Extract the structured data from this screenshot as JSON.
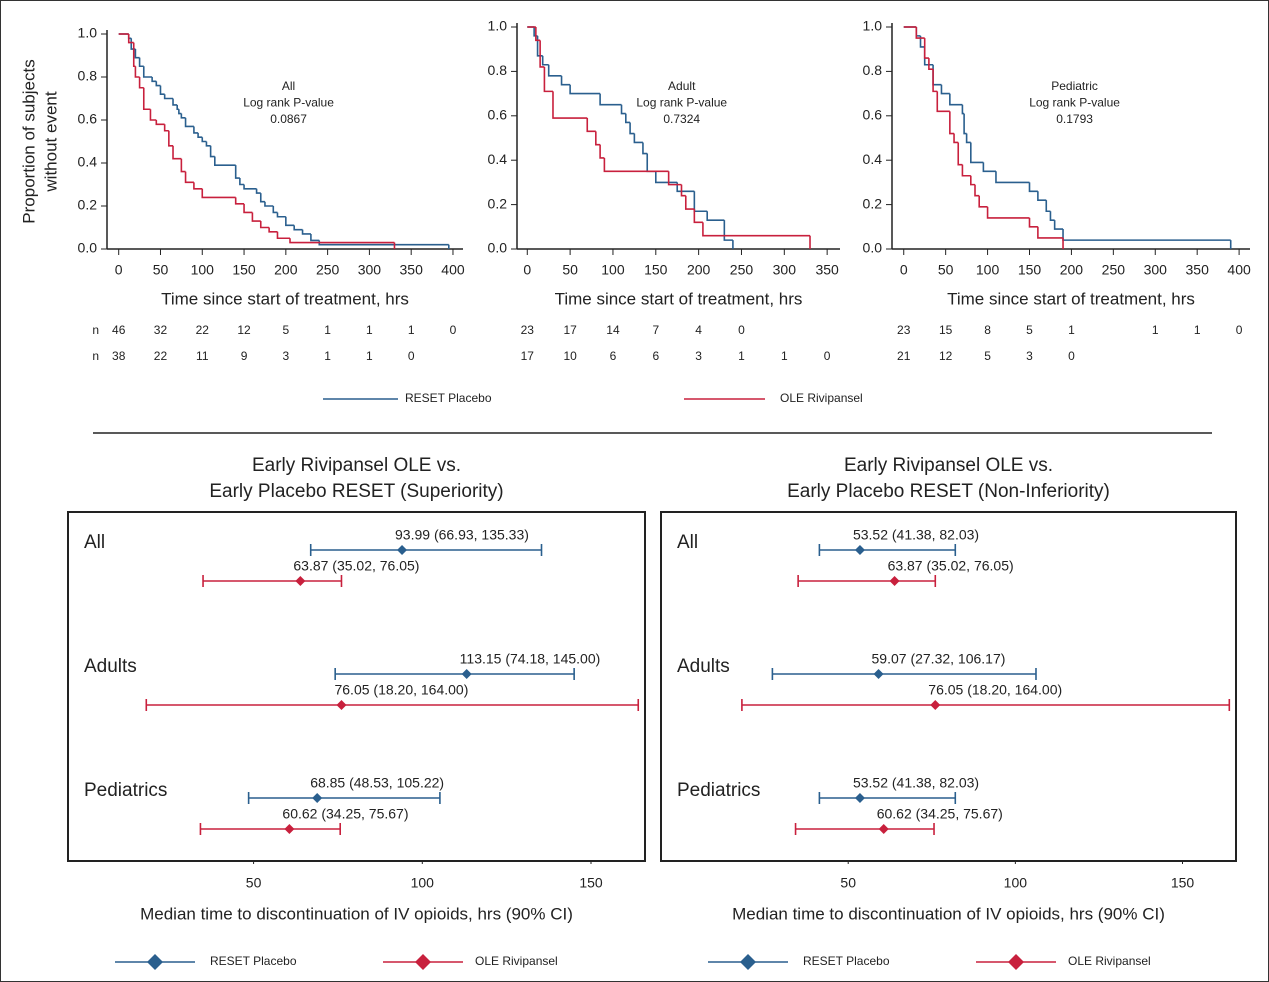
{
  "chart_data": [
    {
      "type": "step",
      "annotation": [
        "All",
        "Log rank P-value",
        "0.0867"
      ],
      "ylabel": [
        "Proportion of subjects",
        "without event"
      ],
      "xlabel": "Time since start of treatment, hrs",
      "xlim": [
        -14,
        412
      ],
      "ylim": [
        0,
        1
      ],
      "xticks": [
        0,
        50,
        100,
        150,
        200,
        250,
        300,
        350,
        400
      ],
      "yticks": [
        {
          "value": 0,
          "label": "0.0"
        },
        {
          "value": 0.2,
          "label": "0.2"
        },
        {
          "value": 0.4,
          "label": "0.4"
        },
        {
          "value": 0.6,
          "label": "0.6"
        },
        {
          "value": 0.8,
          "label": "0.8"
        },
        {
          "value": 1,
          "label": "1.0"
        }
      ],
      "series": [
        {
          "name": "RESET Placebo",
          "color": "#2a5f8e",
          "x": [
            0,
            12,
            15,
            20,
            25,
            30,
            40,
            45,
            50,
            55,
            65,
            70,
            72,
            75,
            80,
            90,
            95,
            100,
            105,
            110,
            115,
            140,
            145,
            150,
            165,
            170,
            175,
            185,
            190,
            200,
            210,
            220,
            230,
            240,
            395
          ],
          "values": [
            1,
            0.98,
            0.93,
            0.89,
            0.85,
            0.8,
            0.78,
            0.76,
            0.72,
            0.7,
            0.67,
            0.65,
            0.63,
            0.61,
            0.57,
            0.54,
            0.52,
            0.5,
            0.48,
            0.43,
            0.39,
            0.33,
            0.3,
            0.28,
            0.26,
            0.22,
            0.2,
            0.17,
            0.15,
            0.11,
            0.09,
            0.07,
            0.04,
            0.02,
            0
          ]
        },
        {
          "name": "OLE Rivipansel",
          "color": "#c8203d",
          "x": [
            0,
            12,
            18,
            20,
            25,
            30,
            38,
            45,
            55,
            60,
            65,
            75,
            80,
            90,
            100,
            140,
            150,
            160,
            170,
            180,
            190,
            205,
            330
          ],
          "values": [
            1,
            0.96,
            0.85,
            0.8,
            0.75,
            0.65,
            0.6,
            0.58,
            0.55,
            0.48,
            0.42,
            0.36,
            0.31,
            0.28,
            0.24,
            0.21,
            0.17,
            0.13,
            0.1,
            0.08,
            0.05,
            0.03,
            0
          ]
        }
      ],
      "at_risk": [
        {
          "label": "n",
          "values": [
            46,
            32,
            22,
            12,
            5,
            1,
            1,
            1,
            0
          ]
        },
        {
          "label": "n",
          "values": [
            38,
            22,
            11,
            9,
            3,
            1,
            1,
            0
          ]
        }
      ]
    },
    {
      "type": "step",
      "annotation": [
        "Adult",
        "Log rank P-value",
        "0.7324"
      ],
      "xlim": [
        -12,
        365
      ],
      "ylim": [
        0,
        1
      ],
      "xticks": [
        0,
        50,
        100,
        150,
        200,
        250,
        300,
        350
      ],
      "yticks": [
        {
          "value": 0,
          "label": "0.0"
        },
        {
          "value": 0.2,
          "label": "0.2"
        },
        {
          "value": 0.4,
          "label": "0.4"
        },
        {
          "value": 0.6,
          "label": "0.6"
        },
        {
          "value": 0.8,
          "label": "0.8"
        },
        {
          "value": 1,
          "label": "1.0"
        }
      ],
      "xlabel": "Time since start of treatment, hrs",
      "series": [
        {
          "color": "#2a5f8e",
          "x": [
            0,
            8,
            12,
            18,
            25,
            40,
            50,
            85,
            110,
            115,
            120,
            125,
            135,
            140,
            150,
            175,
            195,
            210,
            230,
            240
          ],
          "values": [
            1,
            0.96,
            0.87,
            0.83,
            0.78,
            0.74,
            0.7,
            0.65,
            0.61,
            0.57,
            0.52,
            0.48,
            0.43,
            0.35,
            0.3,
            0.26,
            0.17,
            0.13,
            0.04,
            0
          ]
        },
        {
          "color": "#c8203d",
          "x": [
            0,
            10,
            15,
            20,
            30,
            70,
            80,
            85,
            90,
            165,
            180,
            185,
            195,
            205,
            330
          ],
          "values": [
            1,
            0.94,
            0.82,
            0.71,
            0.59,
            0.53,
            0.47,
            0.41,
            0.35,
            0.29,
            0.24,
            0.18,
            0.12,
            0.06,
            0
          ]
        }
      ],
      "at_risk": [
        {
          "values": [
            23,
            17,
            14,
            7,
            4,
            0
          ]
        },
        {
          "values": [
            17,
            10,
            6,
            6,
            3,
            1,
            1,
            0
          ]
        }
      ]
    },
    {
      "type": "step",
      "annotation": [
        "Pediatric",
        "Log rank P-value",
        "0.1793"
      ],
      "xlim": [
        -14,
        413
      ],
      "ylim": [
        0,
        1
      ],
      "xticks": [
        0,
        50,
        100,
        150,
        200,
        250,
        300,
        350,
        400
      ],
      "yticks": [
        {
          "value": 0,
          "label": "0.0"
        },
        {
          "value": 0.2,
          "label": "0.2"
        },
        {
          "value": 0.4,
          "label": "0.4"
        },
        {
          "value": 0.6,
          "label": "0.6"
        },
        {
          "value": 0.8,
          "label": "0.8"
        },
        {
          "value": 1,
          "label": "1.0"
        }
      ],
      "xlabel": "Time since start of treatment, hrs",
      "series": [
        {
          "color": "#2a5f8e",
          "x": [
            0,
            15,
            20,
            25,
            35,
            45,
            55,
            70,
            72,
            75,
            80,
            95,
            110,
            150,
            160,
            170,
            175,
            180,
            190,
            390
          ],
          "values": [
            1,
            0.96,
            0.91,
            0.83,
            0.74,
            0.7,
            0.65,
            0.61,
            0.52,
            0.48,
            0.39,
            0.35,
            0.3,
            0.26,
            0.22,
            0.17,
            0.13,
            0.09,
            0.04,
            0
          ]
        },
        {
          "color": "#c8203d",
          "x": [
            0,
            15,
            25,
            30,
            35,
            40,
            55,
            60,
            65,
            70,
            80,
            85,
            90,
            100,
            150,
            160,
            190
          ],
          "values": [
            1,
            0.95,
            0.86,
            0.81,
            0.71,
            0.62,
            0.52,
            0.48,
            0.38,
            0.33,
            0.29,
            0.24,
            0.19,
            0.14,
            0.1,
            0.05,
            0
          ]
        }
      ],
      "at_risk": [
        {
          "values": [
            23,
            15,
            8,
            5,
            1,
            null,
            1,
            1,
            0
          ]
        },
        {
          "values": [
            21,
            12,
            5,
            3,
            0
          ]
        }
      ]
    },
    {
      "type": "forest",
      "title": [
        "Early Rivipansel OLE vs.",
        "Early Placebo RESET (Superiority)"
      ],
      "xlabel": "Median time to discontinuation of IV opioids, hrs (90% CI)",
      "xlim": [
        -5,
        166
      ],
      "xticks": [
        50,
        100,
        150
      ],
      "categories": [
        "All",
        "Adults",
        "Pediatrics"
      ],
      "series": [
        {
          "name": "RESET Placebo",
          "color": "#2a5f8e",
          "values": [
            93.99,
            113.15,
            68.85
          ],
          "lower": [
            66.93,
            74.18,
            48.53
          ],
          "upper": [
            135.33,
            145.0,
            105.22
          ],
          "value_labels": [
            "93.99 (66.93, 135.33)",
            "113.15 (74.18, 145.00)",
            "68.85 (48.53, 105.22)"
          ]
        },
        {
          "name": "OLE Rivipansel",
          "color": "#c8203d",
          "values": [
            63.87,
            76.05,
            60.62
          ],
          "lower": [
            35.02,
            18.2,
            34.25
          ],
          "upper": [
            76.05,
            164.0,
            75.67
          ],
          "value_labels": [
            "63.87 (35.02, 76.05)",
            "76.05 (18.20, 164.00)",
            "60.62 (34.25, 75.67)"
          ]
        }
      ]
    },
    {
      "type": "forest",
      "title": [
        "Early Rivipansel OLE vs.",
        "Early Placebo RESET (Non-Inferiority)"
      ],
      "xlabel": "Median time to discontinuation of IV opioids, hrs (90% CI)",
      "xlim": [
        -6,
        166
      ],
      "xticks": [
        50,
        100,
        150
      ],
      "categories": [
        "All",
        "Adults",
        "Pediatrics"
      ],
      "series": [
        {
          "name": "RESET Placebo",
          "color": "#2a5f8e",
          "values": [
            53.52,
            59.07,
            53.52
          ],
          "lower": [
            41.38,
            27.32,
            41.38
          ],
          "upper": [
            82.03,
            106.17,
            82.03
          ],
          "value_labels": [
            "53.52 (41.38, 82.03)",
            "59.07 (27.32, 106.17)",
            "53.52 (41.38, 82.03)"
          ]
        },
        {
          "name": "OLE Rivipansel",
          "color": "#c8203d",
          "values": [
            63.87,
            76.05,
            60.62
          ],
          "lower": [
            35.02,
            18.2,
            34.25
          ],
          "upper": [
            76.05,
            164.0,
            75.67
          ],
          "value_labels": [
            "63.87 (35.02, 76.05)",
            "76.05 (18.20, 164.00)",
            "60.62 (34.25, 75.67)"
          ]
        }
      ]
    }
  ]
}
